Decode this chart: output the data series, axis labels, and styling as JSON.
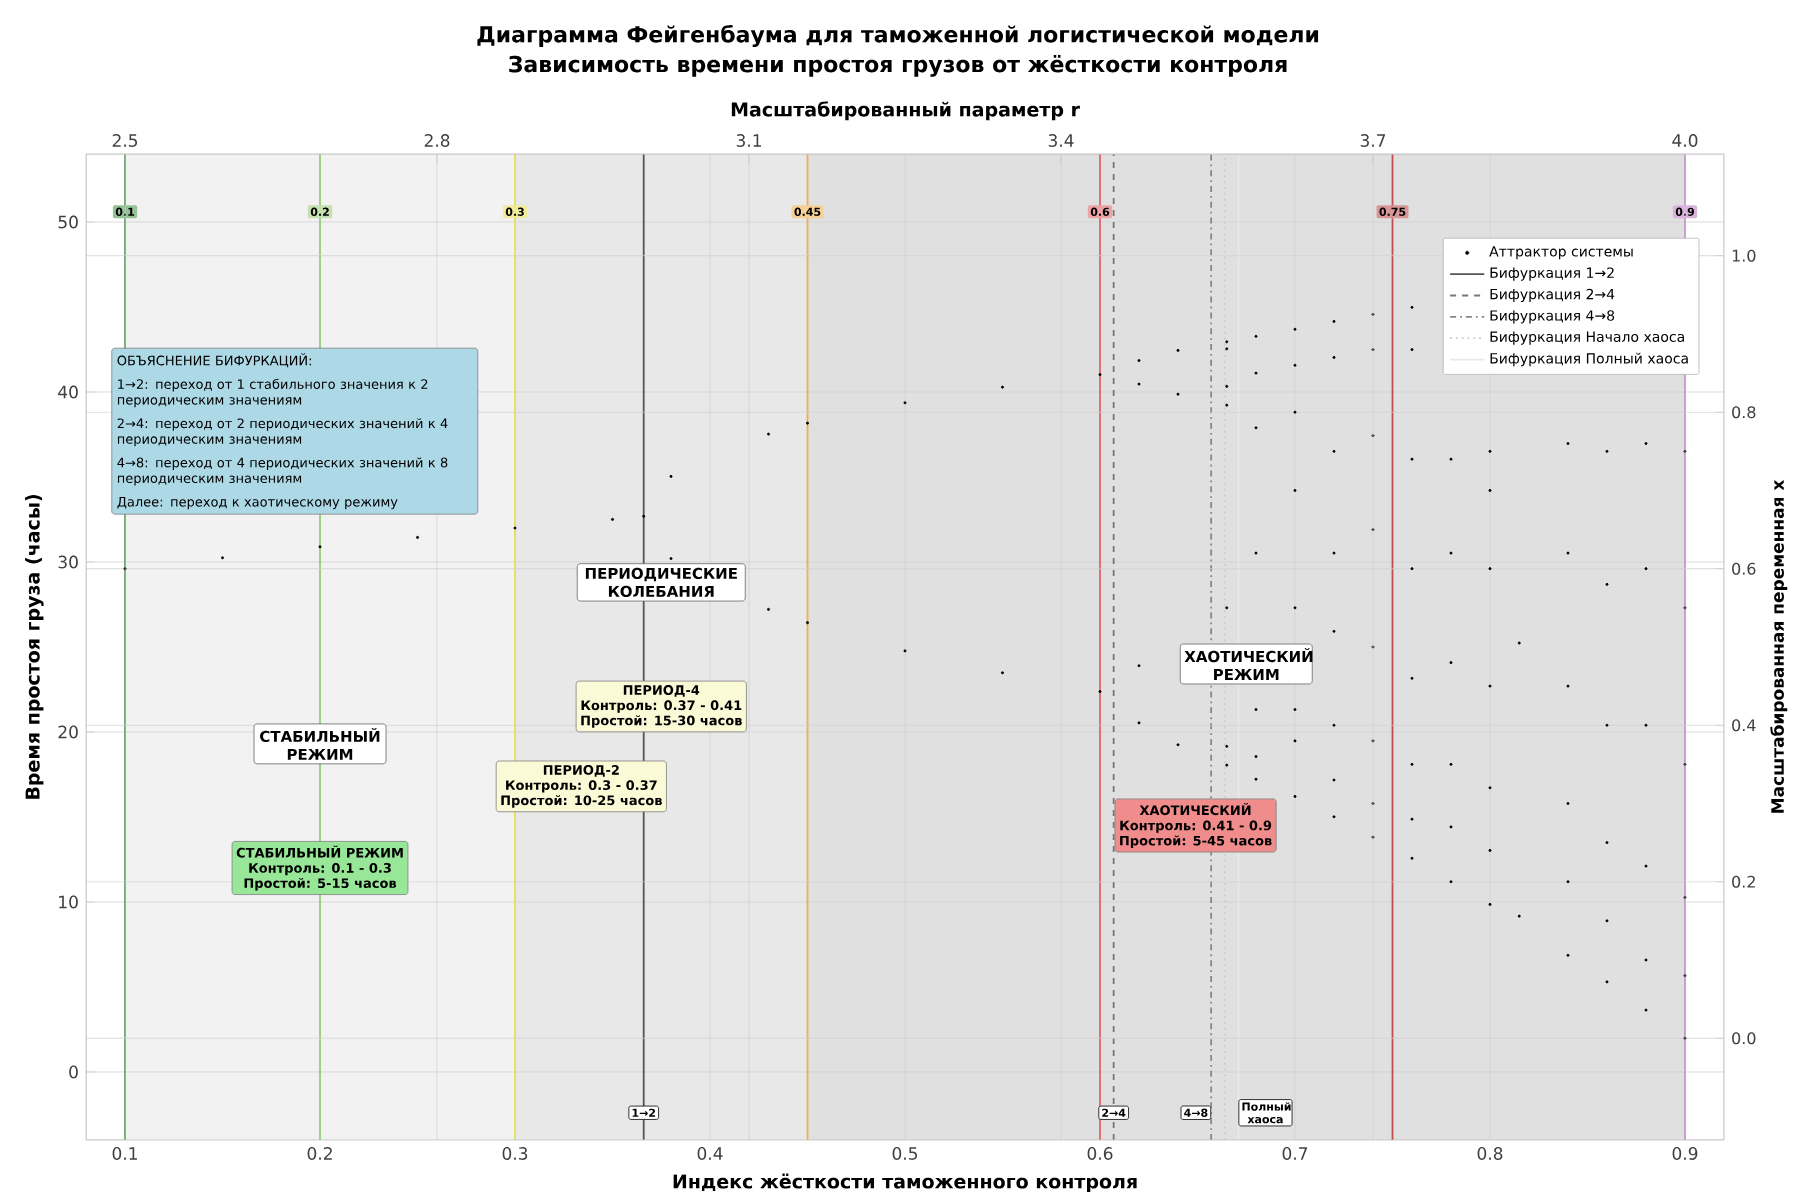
{
  "chart_data": {
    "type": "scatter",
    "title": "Диаграмма Фейгенбаума для таможенной логистической модели",
    "subtitle": "Зависимость времени простоя грузов от жёсткости контроля",
    "xlabel": "Индекс жёсткости таможенного контроля",
    "ylabel": "Время простоя груза (часы)",
    "y2label": "Масштабированная переменная x",
    "x2label": "Масштабированный параметр r",
    "xlim": [
      0.08,
      0.92
    ],
    "ylim": [
      -4,
      54
    ],
    "y2lim": [
      -0.13,
      1.13
    ],
    "x2lim": [
      2.4625,
      4.0375
    ],
    "xticks": [
      0.1,
      0.2,
      0.3,
      0.4,
      0.5,
      0.6,
      0.7,
      0.8,
      0.9
    ],
    "yticks": [
      0,
      10,
      20,
      30,
      40,
      50
    ],
    "y2ticks": [
      {
        "value": 0,
        "label": "0.0"
      },
      0.2,
      0.4,
      0.6,
      0.8,
      {
        "value": 1,
        "label": "1.0"
      }
    ],
    "x2ticks": [
      2.5,
      2.8,
      3.1,
      3.4,
      3.7,
      {
        "value": 4,
        "label": "4.0"
      }
    ],
    "grid": true,
    "legend": "top right",
    "series": [
      {
        "name": "Аттрактор системы",
        "marker": "circle",
        "axis": "y2",
        "color": "#000000",
        "x": [
          0.1,
          0.15,
          0.2,
          0.25,
          0.3,
          0.35,
          0.366,
          0.38,
          0.38,
          0.43,
          0.43,
          0.45,
          0.45,
          0.5,
          0.5,
          0.55,
          0.55,
          0.6,
          0.6,
          0.62,
          0.62,
          0.62,
          0.62,
          0.64,
          0.64,
          0.64,
          0.665,
          0.665,
          0.665,
          0.665,
          0.665,
          0.665,
          0.665,
          0.68,
          0.68,
          0.68,
          0.68,
          0.68,
          0.68,
          0.68,
          0.7,
          0.7,
          0.7,
          0.7,
          0.7,
          0.7,
          0.7,
          0.7,
          0.72,
          0.72,
          0.72,
          0.72,
          0.72,
          0.72,
          0.72,
          0.72,
          0.74,
          0.74,
          0.74,
          0.74,
          0.74,
          0.74,
          0.74,
          0.74,
          0.76,
          0.76,
          0.76,
          0.76,
          0.76,
          0.76,
          0.76,
          0.76,
          0.78,
          0.78,
          0.78,
          0.78,
          0.78,
          0.78,
          0.8,
          0.8,
          0.8,
          0.8,
          0.8,
          0.8,
          0.8,
          0.815,
          0.815,
          0.84,
          0.84,
          0.84,
          0.84,
          0.84,
          0.84,
          0.86,
          0.86,
          0.86,
          0.86,
          0.86,
          0.86,
          0.88,
          0.88,
          0.88,
          0.88,
          0.88,
          0.88,
          0.9,
          0.9,
          0.9,
          0.9,
          0.9,
          0.9
        ],
        "values": [
          0.6,
          0.614,
          0.628,
          0.64,
          0.652,
          0.663,
          0.667,
          0.718,
          0.613,
          0.772,
          0.548,
          0.786,
          0.531,
          0.812,
          0.495,
          0.832,
          0.467,
          0.848,
          0.443,
          0.866,
          0.403,
          0.836,
          0.476,
          0.879,
          0.375,
          0.823,
          0.89,
          0.349,
          0.809,
          0.55,
          0.881,
          0.373,
          0.833,
          0.897,
          0.85,
          0.78,
          0.62,
          0.42,
          0.36,
          0.331,
          0.906,
          0.86,
          0.8,
          0.7,
          0.55,
          0.42,
          0.38,
          0.309,
          0.916,
          0.87,
          0.75,
          0.62,
          0.52,
          0.4,
          0.33,
          0.283,
          0.925,
          0.88,
          0.77,
          0.65,
          0.5,
          0.38,
          0.3,
          0.257,
          0.934,
          0.88,
          0.74,
          0.6,
          0.46,
          0.35,
          0.28,
          0.23,
          0.74,
          0.62,
          0.48,
          0.35,
          0.27,
          0.2,
          0.75,
          0.6,
          0.45,
          0.32,
          0.24,
          0.171,
          0.7,
          0.505,
          0.156,
          0.76,
          0.62,
          0.45,
          0.3,
          0.2,
          0.106,
          0.75,
          0.58,
          0.4,
          0.25,
          0.15,
          0.072,
          0.76,
          0.6,
          0.4,
          0.22,
          0.1,
          0.036,
          0.75,
          0.55,
          0.35,
          0.18,
          0.08,
          0.0
        ]
      },
      {
        "name": "Бифуркация 1→2",
        "type": "line",
        "marker": "none",
        "line_style": "solid",
        "color": "#555555",
        "x": [
          0.366,
          0.366
        ],
        "values": [
          -4,
          54
        ]
      },
      {
        "name": "Бифуркация 2→4",
        "type": "line",
        "marker": "none",
        "line_style": "dashed",
        "color": "#777777",
        "x": [
          0.607,
          0.607
        ],
        "values": [
          -4,
          54
        ]
      },
      {
        "name": "Бифуркация 4→8",
        "type": "line",
        "marker": "none",
        "line_style": "dashdot",
        "color": "#888888",
        "x": [
          0.657,
          0.657
        ],
        "values": [
          -4,
          54
        ]
      },
      {
        "name": "Бифуркация Начало хаоса",
        "type": "line",
        "marker": "none",
        "line_style": "dotted",
        "color": "#cccccc",
        "x": [
          0.664,
          0.664
        ],
        "values": [
          -4,
          54
        ]
      },
      {
        "name": "Бифуркация Полный хаоса",
        "type": "line",
        "marker": "none",
        "line_style": "solid",
        "color": "#e8e8e8",
        "x": [
          0.671,
          0.671
        ],
        "values": [
          -4,
          54
        ]
      }
    ],
    "bands": [
      {
        "axis": "x",
        "from": 0.1,
        "to": 0.3,
        "color": "#f2f2f2"
      },
      {
        "axis": "x",
        "from": 0.3,
        "to": 0.45,
        "color": "#e8e8e8"
      },
      {
        "axis": "x",
        "from": 0.45,
        "to": 0.9,
        "color": "#e0e0e0"
      }
    ],
    "ref_lines": [
      {
        "axis": "x",
        "value": 0.1,
        "label": "0.1",
        "color": "#4e9a4e"
      },
      {
        "axis": "x",
        "value": 0.2,
        "label": "0.2",
        "color": "#9ccc7a"
      },
      {
        "axis": "x",
        "value": 0.3,
        "label": "0.3",
        "color": "#e8e05a"
      },
      {
        "axis": "x",
        "value": 0.45,
        "label": "0.45",
        "color": "#f0b050"
      },
      {
        "axis": "x",
        "value": 0.6,
        "label": "0.6",
        "color": "#e06666"
      },
      {
        "axis": "x",
        "value": 0.75,
        "label": "0.75",
        "color": "#c05050"
      },
      {
        "axis": "x",
        "value": 0.9,
        "label": "0.9",
        "color": "#c080c8"
      }
    ],
    "annotations": [
      "ОБЪЯСНЕНИЕ БИФУРКАЦИЙ:",
      "1→2: переход от 1 стабильного значения к 2 периодическим значениям",
      "2→4: переход от 2 периодических значений к 4 периодическим значениям",
      "4→8: переход от 4 периодических значений к 8 периодическим значениям",
      "Далее: переход к хаотическому режиму",
      "СТАБИЛЬНЫЙ РЕЖИМ",
      "ПЕРИОДИЧЕСКИЕ КОЛЕБАНИЯ",
      "ХАОТИЧЕСКИЙ РЕЖИМ",
      "СТАБИЛЬНЫЙ РЕЖИМ",
      "Контроль: 0.1 - 0.3",
      "Простой: 5-15 часов",
      "ПЕРИОД-2",
      "Контроль: 0.3 - 0.37",
      "Простой: 10-25 часов",
      "ПЕРИОД-4",
      "Контроль: 0.37 - 0.41",
      "Простой: 15-30 часов",
      "ХАОТИЧЕСКИЙ",
      "Контроль: 0.41 - 0.9",
      "Простой: 5-45 часов",
      {
        "text": "1→2",
        "x": 0.366,
        "y": -2.4
      },
      {
        "text": "2→4",
        "x": 0.607,
        "y": -2.4
      },
      {
        "text": "4→8",
        "x": 0.657,
        "y": -2.4
      },
      {
        "text": "Полный хаоса",
        "x": 0.671,
        "y": -2.4
      }
    ]
  }
}
